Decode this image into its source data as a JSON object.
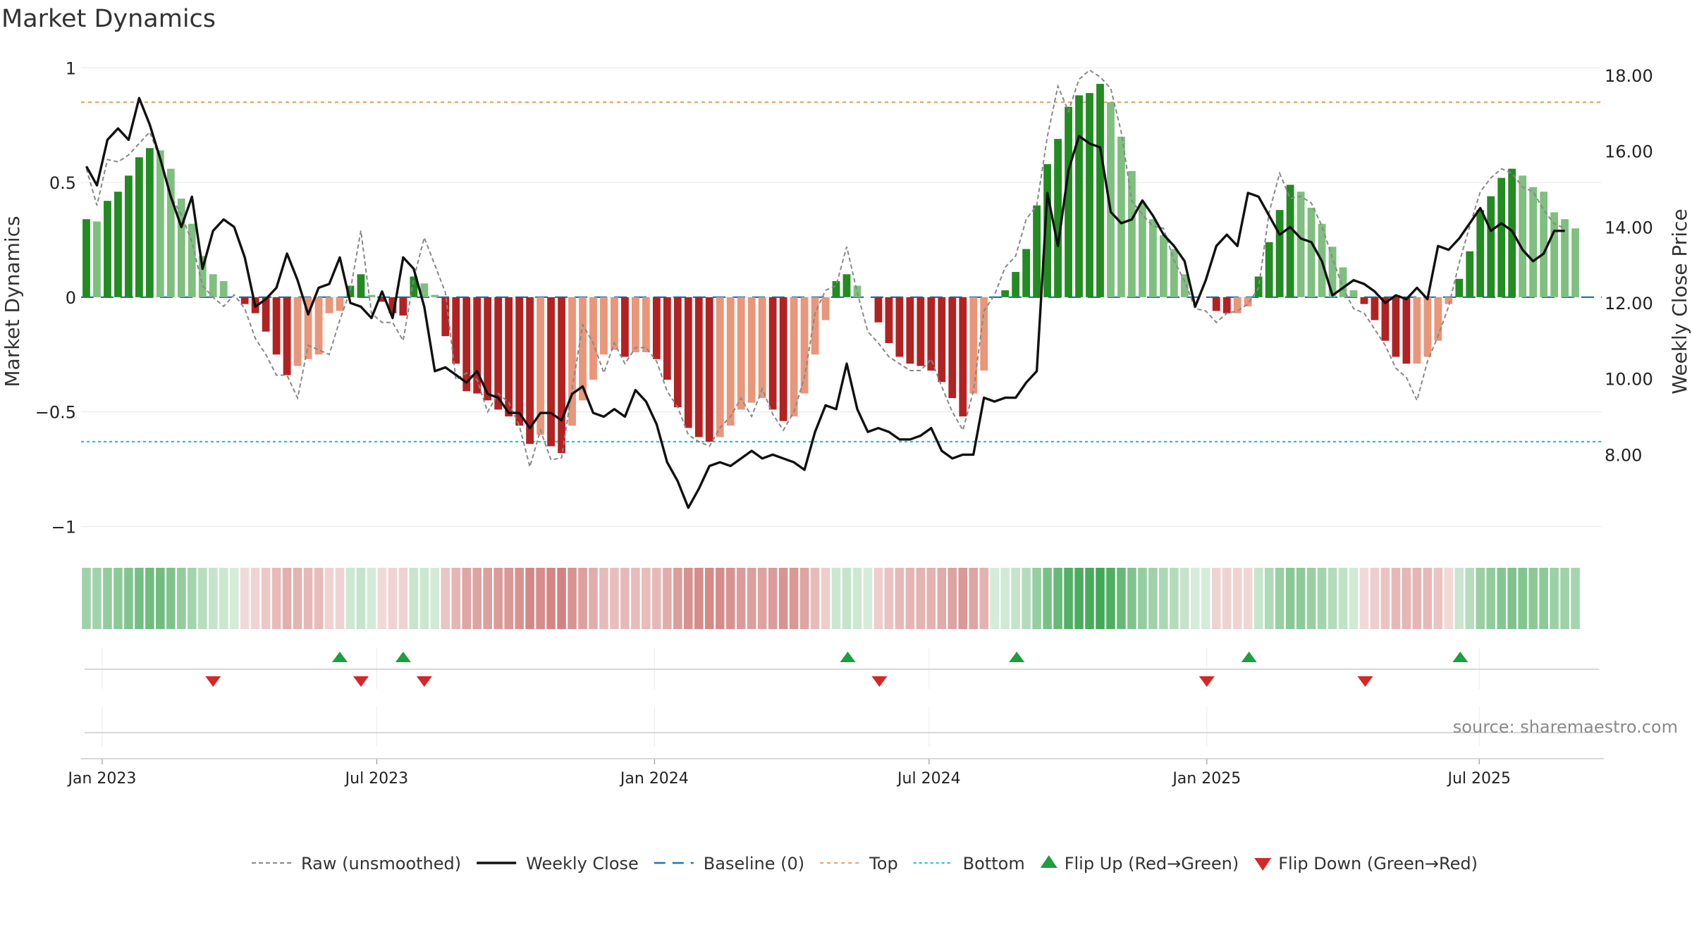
{
  "chart_data": {
    "type": "bar",
    "title": "Market Dynamics",
    "ylabel_left": "Market Dynamics",
    "ylabel_right": "Weekly Close Price",
    "y_left": {
      "lim": [
        -1.1,
        1.05
      ],
      "ticks": [
        1,
        0.5,
        0,
        -0.5,
        -1
      ],
      "tick_labels": [
        "1",
        "0.5",
        "0",
        "−0.5",
        "−1"
      ]
    },
    "y_right": {
      "lim": [
        5.5,
        18.5
      ],
      "ticks": [
        18,
        16,
        14,
        12,
        10,
        8
      ],
      "tick_labels": [
        "18.00",
        "16.00",
        "14.00",
        "12.00",
        "10.00",
        "8.00"
      ]
    },
    "x_ticks": [
      "Jan 2023",
      "Jul 2023",
      "Jan 2024",
      "Jul 2024",
      "Jan 2025",
      "Jul 2025"
    ],
    "x_tick_weeks": [
      2,
      28,
      54.3,
      80.3,
      106.6,
      132.4
    ],
    "grid": true,
    "top_level": 0.85,
    "bottom_level": -0.63,
    "baseline": 0,
    "colors": {
      "strong_green": "#228b22",
      "light_green": "#7fbf7f",
      "strong_red": "#b22222",
      "light_red": "#e9967a",
      "close": "#111111",
      "raw": "#888888",
      "baseline": "#1f77b4",
      "top": "#e8a46a",
      "bottom": "#2ec4c4",
      "flip_up": "#1e9e3e",
      "flip_down": "#d62728",
      "strip_green": "#2e9e44",
      "strip_red": "#c0504d"
    },
    "weeks": 144,
    "strength": [
      0.34,
      0.33,
      0.42,
      0.46,
      0.53,
      0.61,
      0.65,
      0.64,
      0.56,
      0.43,
      0.32,
      0.18,
      0.1,
      0.07,
      0,
      -0.03,
      -0.07,
      -0.15,
      -0.25,
      -0.34,
      -0.3,
      -0.27,
      -0.25,
      -0.07,
      -0.06,
      0.05,
      0.1,
      0.01,
      -0.02,
      -0.07,
      -0.08,
      0.09,
      0.06,
      0.01,
      -0.17,
      -0.29,
      -0.41,
      -0.42,
      -0.45,
      -0.49,
      -0.52,
      -0.56,
      -0.64,
      -0.6,
      -0.65,
      -0.68,
      -0.56,
      -0.45,
      -0.36,
      -0.25,
      -0.23,
      -0.26,
      -0.24,
      -0.24,
      -0.27,
      -0.36,
      -0.48,
      -0.57,
      -0.61,
      -0.63,
      -0.61,
      -0.56,
      -0.49,
      -0.46,
      -0.44,
      -0.49,
      -0.54,
      -0.52,
      -0.42,
      -0.25,
      -0.1,
      0.07,
      0.1,
      0.05,
      0,
      -0.11,
      -0.2,
      -0.26,
      -0.29,
      -0.3,
      -0.32,
      -0.37,
      -0.44,
      -0.52,
      -0.42,
      -0.32,
      0,
      0.03,
      0.11,
      0.21,
      0.4,
      0.58,
      0.69,
      0.83,
      0.88,
      0.89,
      0.93,
      0.85,
      0.7,
      0.55,
      0.41,
      0.34,
      0.27,
      0.21,
      0.1,
      0,
      0,
      -0.06,
      -0.07,
      -0.07,
      -0.04,
      0.09,
      0.24,
      0.38,
      0.49,
      0.46,
      0.39,
      0.32,
      0.22,
      0.13,
      0.03,
      -0.03,
      -0.1,
      -0.19,
      -0.26,
      -0.29,
      -0.29,
      -0.26,
      -0.19,
      -0.03,
      0.08,
      0.2,
      0.38,
      0.44,
      0.52,
      0.56,
      0.53,
      0.48,
      0.46,
      0.37,
      0.34,
      0.3
    ],
    "raw": [
      0.56,
      0.4,
      0.6,
      0.59,
      0.62,
      0.67,
      0.72,
      0.6,
      0.44,
      0.36,
      0.24,
      0.05,
      0,
      -0.04,
      0.01,
      -0.05,
      -0.18,
      -0.25,
      -0.34,
      -0.34,
      -0.44,
      -0.21,
      -0.23,
      -0.25,
      -0.1,
      0.03,
      0.29,
      -0.07,
      -0.11,
      -0.11,
      -0.19,
      0.08,
      0.26,
      0.14,
      0.02,
      -0.36,
      -0.33,
      -0.36,
      -0.5,
      -0.42,
      -0.46,
      -0.56,
      -0.74,
      -0.58,
      -0.71,
      -0.7,
      -0.4,
      -0.12,
      -0.2,
      -0.33,
      -0.2,
      -0.29,
      -0.22,
      -0.22,
      -0.28,
      -0.41,
      -0.48,
      -0.6,
      -0.63,
      -0.65,
      -0.57,
      -0.52,
      -0.44,
      -0.52,
      -0.4,
      -0.51,
      -0.58,
      -0.5,
      -0.35,
      -0.07,
      0.03,
      0.05,
      0.22,
      0.02,
      -0.15,
      -0.2,
      -0.26,
      -0.29,
      -0.32,
      -0.32,
      -0.27,
      -0.39,
      -0.5,
      -0.58,
      -0.41,
      -0.06,
      0.01,
      0.13,
      0.18,
      0.34,
      0.4,
      0.7,
      0.92,
      0.81,
      0.95,
      0.99,
      0.96,
      0.91,
      0.72,
      0.42,
      0.36,
      0.31,
      0.3,
      0.16,
      0.07,
      -0.05,
      -0.06,
      -0.11,
      -0.07,
      -0.06,
      -0.03,
      0.04,
      0.37,
      0.54,
      0.43,
      0.44,
      0.41,
      0.31,
      0.17,
      0.04,
      -0.05,
      -0.07,
      -0.14,
      -0.21,
      -0.31,
      -0.35,
      -0.45,
      -0.28,
      -0.17,
      -0.04,
      0.15,
      0.31,
      0.46,
      0.52,
      0.56,
      0.54,
      0.48,
      0.46,
      0.38,
      0.32,
      0.3
    ],
    "close": [
      15.6,
      15.1,
      16.3,
      16.6,
      16.3,
      17.4,
      16.7,
      15.8,
      14.8,
      14.0,
      14.8,
      12.9,
      13.9,
      14.2,
      14.0,
      13.2,
      11.9,
      12.1,
      12.4,
      13.3,
      12.6,
      11.7,
      12.4,
      12.5,
      13.2,
      12.0,
      11.9,
      11.6,
      12.3,
      11.6,
      13.2,
      12.9,
      11.9,
      10.2,
      10.3,
      10.1,
      9.9,
      10.2,
      9.6,
      9.5,
      9.1,
      9.1,
      8.7,
      9.1,
      9.1,
      8.9,
      9.6,
      9.8,
      9.1,
      9.0,
      9.2,
      9.0,
      9.7,
      9.4,
      8.8,
      7.8,
      7.3,
      6.6,
      7.1,
      7.7,
      7.8,
      7.7,
      7.9,
      8.1,
      7.9,
      8.0,
      7.9,
      7.8,
      7.6,
      8.6,
      9.3,
      9.2,
      10.4,
      9.2,
      8.6,
      8.7,
      8.6,
      8.4,
      8.4,
      8.5,
      8.7,
      8.1,
      7.9,
      8.0,
      8.0,
      9.5,
      9.4,
      9.5,
      9.5,
      9.9,
      10.2,
      14.9,
      13.5,
      15.5,
      16.4,
      16.2,
      16.1,
      14.4,
      14.1,
      14.2,
      14.7,
      14.3,
      13.8,
      13.5,
      13.1,
      11.9,
      12.6,
      13.5,
      13.8,
      13.5,
      14.9,
      14.8,
      14.3,
      13.8,
      14.0,
      13.7,
      13.6,
      13.1,
      12.2,
      12.4,
      12.6,
      12.5,
      12.3,
      12.0,
      12.2,
      12.1,
      12.4,
      12.1,
      13.5,
      13.4,
      13.7,
      14.1,
      14.5,
      13.9,
      14.1,
      13.9,
      13.4,
      13.1,
      13.3,
      13.9,
      13.9
    ],
    "flip_up_weeks": [
      24.5,
      30.5,
      72.6,
      88.6,
      110.6,
      130.6
    ],
    "flip_down_weeks": [
      12.5,
      26.5,
      32.5,
      75.6,
      106.6,
      121.6
    ]
  },
  "legend": [
    {
      "label": "Raw (unsmoothed)",
      "key": "raw"
    },
    {
      "label": "Weekly Close",
      "key": "close"
    },
    {
      "label": "Baseline (0)",
      "key": "baseline"
    },
    {
      "label": "Top",
      "key": "top"
    },
    {
      "label": "Bottom",
      "key": "bottom"
    },
    {
      "label": "Flip Up (Red→Green)",
      "key": "flip_up"
    },
    {
      "label": "Flip Down (Green→Red)",
      "key": "flip_down"
    }
  ],
  "watermark": "source: sharemaestro.com"
}
